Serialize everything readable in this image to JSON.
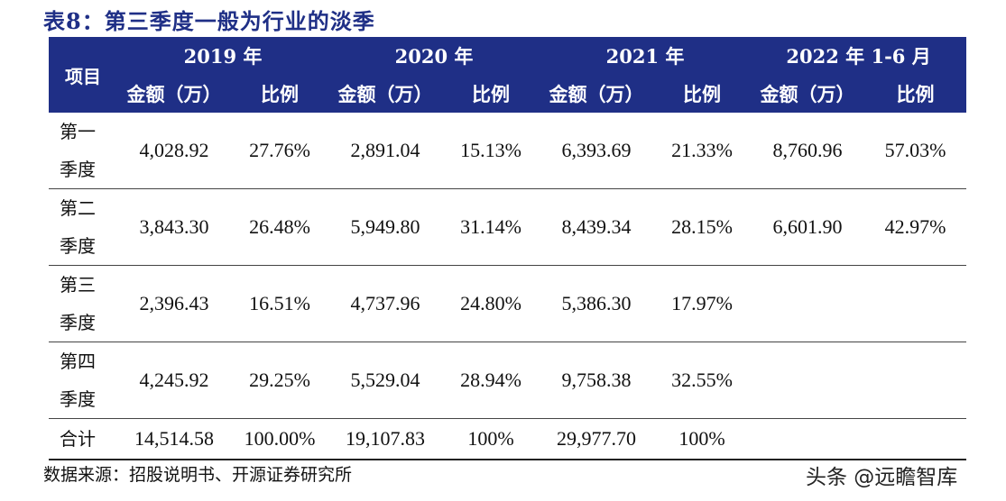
{
  "title": "表8：第三季度一般为行业的淡季",
  "header": {
    "item_label": "项目",
    "years": [
      "2019 年",
      "2020 年",
      "2021 年",
      "2022 年 1-6 月"
    ],
    "amount_label": "金额（万）",
    "ratio_label": "比例"
  },
  "rows": [
    {
      "label_1": "第一",
      "label_2": "季度",
      "cells": [
        "4,028.92",
        "27.76%",
        "2,891.04",
        "15.13%",
        "6,393.69",
        "21.33%",
        "8,760.96",
        "57.03%"
      ]
    },
    {
      "label_1": "第二",
      "label_2": "季度",
      "cells": [
        "3,843.30",
        "26.48%",
        "5,949.80",
        "31.14%",
        "8,439.34",
        "28.15%",
        "6,601.90",
        "42.97%"
      ]
    },
    {
      "label_1": "第三",
      "label_2": "季度",
      "cells": [
        "2,396.43",
        "16.51%",
        "4,737.96",
        "24.80%",
        "5,386.30",
        "17.97%",
        "",
        ""
      ]
    },
    {
      "label_1": "第四",
      "label_2": "季度",
      "cells": [
        "4,245.92",
        "29.25%",
        "5,529.04",
        "28.94%",
        "9,758.38",
        "32.55%",
        "",
        ""
      ]
    }
  ],
  "total": {
    "label": "合计",
    "cells": [
      "14,514.58",
      "100.00%",
      "19,107.83",
      "100%",
      "29,977.70",
      "100%",
      "",
      ""
    ]
  },
  "source": "数据来源：招股说明书、开源证券研究所",
  "watermark": "头条 @远瞻智库",
  "colors": {
    "header_bg": "#1f2f86",
    "title_text": "#1f2f86"
  }
}
